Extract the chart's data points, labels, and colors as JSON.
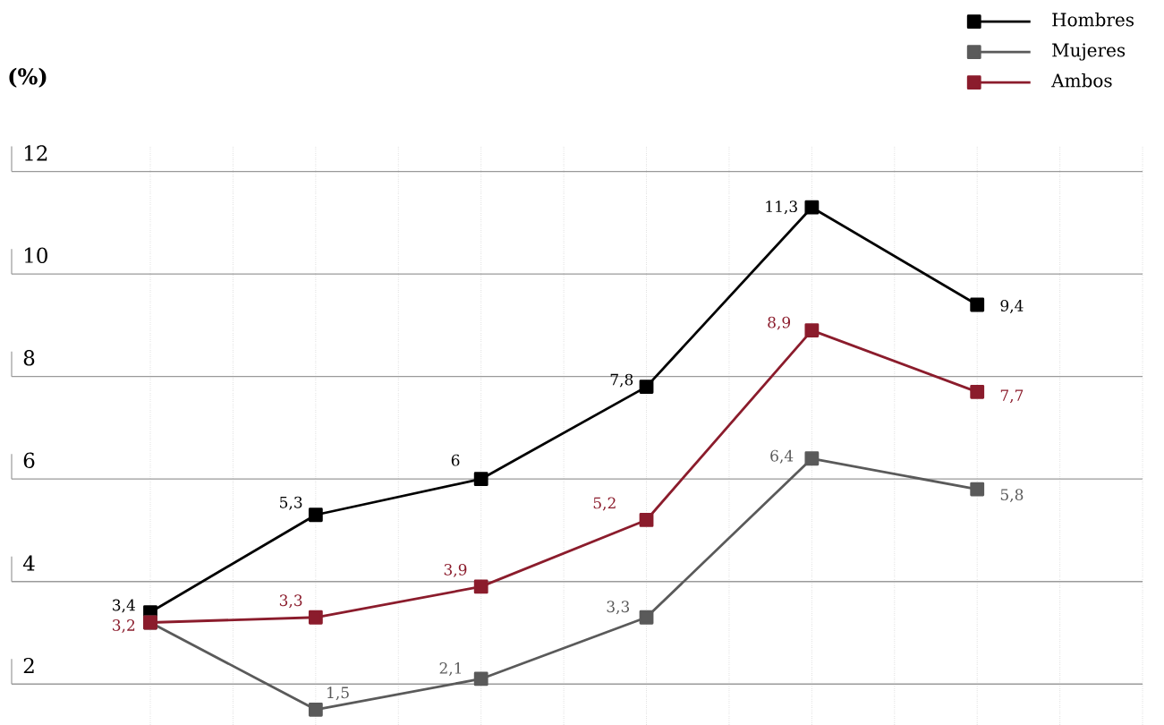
{
  "chart_data": {
    "type": "line",
    "ylabel": "(%)",
    "categories": [
      null,
      null,
      null,
      null,
      null,
      null
    ],
    "series": [
      {
        "name": "Hombres",
        "color": "#000000",
        "values": [
          3.4,
          5.3,
          6,
          7.8,
          11.3,
          9.4
        ],
        "value_labels": [
          "3,4",
          "5,3",
          "6",
          "7,8",
          "11,3",
          "9,4"
        ]
      },
      {
        "name": "Mujeres",
        "color": "#5a5a5a",
        "values": [
          3.2,
          1.5,
          2.1,
          3.3,
          6.4,
          5.8
        ],
        "value_labels": [
          null,
          "1,5",
          "2,1",
          "3,3",
          "6,4",
          "5,8"
        ]
      },
      {
        "name": "Ambos",
        "color": "#8b1c2c",
        "values": [
          3.2,
          3.3,
          3.9,
          5.2,
          8.9,
          7.7
        ],
        "value_labels": [
          "3,2",
          "3,3",
          "3,9",
          "5,2",
          "8,9",
          "7,7"
        ]
      }
    ],
    "ylim": [
      1.2,
      12.5
    ],
    "yticks": [
      2,
      4,
      6,
      8,
      10,
      12
    ],
    "grid": true,
    "legend": "top right",
    "tick_labels": "y",
    "marker": "square",
    "line_style": "solid"
  }
}
